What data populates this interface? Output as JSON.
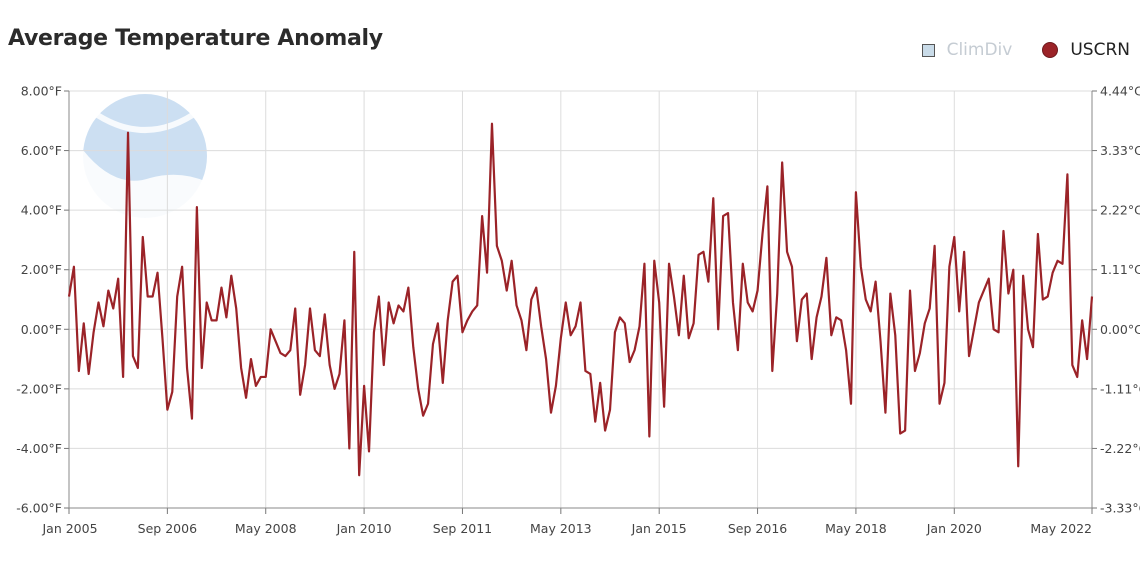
{
  "chart_data": {
    "type": "line",
    "title": "Average Temperature Anomaly",
    "legend": [
      {
        "name": "ClimDiv",
        "color": "#c9dbe8",
        "marker": "square",
        "active": false
      },
      {
        "name": "USCRN",
        "color": "#9b2328",
        "marker": "circle",
        "active": true
      }
    ],
    "legend_position": "top-right",
    "ylim": [
      -6,
      8
    ],
    "yticks": [
      {
        "value": -6,
        "label": "-6.00°F"
      },
      {
        "value": -4,
        "label": "-4.00°F"
      },
      {
        "value": -2,
        "label": "-2.00°F"
      },
      {
        "value": 0,
        "label": "0.00°F"
      },
      {
        "value": 2,
        "label": "2.00°F"
      },
      {
        "value": 4,
        "label": "4.00°F"
      },
      {
        "value": 6,
        "label": "6.00°F"
      },
      {
        "value": 8,
        "label": "8.00°F"
      }
    ],
    "yticks_right": [
      {
        "value": -6,
        "label": "-3.33°C"
      },
      {
        "value": -4,
        "label": "-2.22°C"
      },
      {
        "value": -2,
        "label": "-1.11°C"
      },
      {
        "value": 0,
        "label": "0.00°C"
      },
      {
        "value": 2,
        "label": "1.11°C"
      },
      {
        "value": 4,
        "label": "2.22°C"
      },
      {
        "value": 6,
        "label": "3.33°C"
      },
      {
        "value": 8,
        "label": "4.44°C"
      }
    ],
    "xlim": [
      "2005-01",
      "2022-05"
    ],
    "xticks": [
      {
        "value": "2005-01",
        "label": "Jan 2005"
      },
      {
        "value": "2006-09",
        "label": "Sep 2006"
      },
      {
        "value": "2008-05",
        "label": "May 2008"
      },
      {
        "value": "2010-01",
        "label": "Jan 2010"
      },
      {
        "value": "2011-09",
        "label": "Sep 2011"
      },
      {
        "value": "2013-05",
        "label": "May 2013"
      },
      {
        "value": "2015-01",
        "label": "Jan 2015"
      },
      {
        "value": "2016-09",
        "label": "Sep 2016"
      },
      {
        "value": "2018-05",
        "label": "May 2018"
      },
      {
        "value": "2020-01",
        "label": "Jan 2020"
      },
      {
        "value": "2022-05",
        "label": "May 2022"
      }
    ],
    "grid": true,
    "series": [
      {
        "name": "USCRN",
        "color": "#9b2328",
        "points": [
          [
            "2005-01",
            1.1
          ],
          [
            "2005-02",
            2.1
          ],
          [
            "2005-03",
            -1.4
          ],
          [
            "2005-04",
            0.2
          ],
          [
            "2005-05",
            -1.5
          ],
          [
            "2005-06",
            -0.1
          ],
          [
            "2005-07",
            0.9
          ],
          [
            "2005-08",
            0.1
          ],
          [
            "2005-09",
            1.3
          ],
          [
            "2005-10",
            0.7
          ],
          [
            "2005-11",
            1.7
          ],
          [
            "2005-12",
            -1.6
          ],
          [
            "2006-01",
            6.6
          ],
          [
            "2006-02",
            -0.9
          ],
          [
            "2006-03",
            -1.3
          ],
          [
            "2006-04",
            3.1
          ],
          [
            "2006-05",
            1.1
          ],
          [
            "2006-06",
            1.1
          ],
          [
            "2006-07",
            1.9
          ],
          [
            "2006-08",
            -0.3
          ],
          [
            "2006-09",
            -2.7
          ],
          [
            "2006-10",
            -2.1
          ],
          [
            "2006-11",
            1.1
          ],
          [
            "2006-12",
            2.1
          ],
          [
            "2007-01",
            -1.3
          ],
          [
            "2007-02",
            -3.0
          ],
          [
            "2007-03",
            4.1
          ],
          [
            "2007-04",
            -1.3
          ],
          [
            "2007-05",
            0.9
          ],
          [
            "2007-06",
            0.3
          ],
          [
            "2007-07",
            0.3
          ],
          [
            "2007-08",
            1.4
          ],
          [
            "2007-09",
            0.4
          ],
          [
            "2007-10",
            1.8
          ],
          [
            "2007-11",
            0.7
          ],
          [
            "2007-12",
            -1.3
          ],
          [
            "2008-01",
            -2.3
          ],
          [
            "2008-02",
            -1.0
          ],
          [
            "2008-03",
            -1.9
          ],
          [
            "2008-04",
            -1.6
          ],
          [
            "2008-05",
            -1.6
          ],
          [
            "2008-06",
            0.0
          ],
          [
            "2008-07",
            -0.4
          ],
          [
            "2008-08",
            -0.8
          ],
          [
            "2008-09",
            -0.9
          ],
          [
            "2008-10",
            -0.7
          ],
          [
            "2008-11",
            0.7
          ],
          [
            "2008-12",
            -2.2
          ],
          [
            "2009-01",
            -1.2
          ],
          [
            "2009-02",
            0.7
          ],
          [
            "2009-03",
            -0.7
          ],
          [
            "2009-04",
            -0.9
          ],
          [
            "2009-05",
            0.5
          ],
          [
            "2009-06",
            -1.2
          ],
          [
            "2009-07",
            -2.0
          ],
          [
            "2009-08",
            -1.5
          ],
          [
            "2009-09",
            0.3
          ],
          [
            "2009-10",
            -4.0
          ],
          [
            "2009-11",
            2.6
          ],
          [
            "2009-12",
            -4.9
          ],
          [
            "2010-01",
            -1.9
          ],
          [
            "2010-02",
            -4.1
          ],
          [
            "2010-03",
            -0.1
          ],
          [
            "2010-04",
            1.1
          ],
          [
            "2010-05",
            -1.2
          ],
          [
            "2010-06",
            0.9
          ],
          [
            "2010-07",
            0.2
          ],
          [
            "2010-08",
            0.8
          ],
          [
            "2010-09",
            0.6
          ],
          [
            "2010-10",
            1.4
          ],
          [
            "2010-11",
            -0.6
          ],
          [
            "2010-12",
            -2.0
          ],
          [
            "2011-01",
            -2.9
          ],
          [
            "2011-02",
            -2.5
          ],
          [
            "2011-03",
            -0.5
          ],
          [
            "2011-04",
            0.2
          ],
          [
            "2011-05",
            -1.8
          ],
          [
            "2011-06",
            0.3
          ],
          [
            "2011-07",
            1.6
          ],
          [
            "2011-08",
            1.8
          ],
          [
            "2011-09",
            -0.1
          ],
          [
            "2011-10",
            0.3
          ],
          [
            "2011-11",
            0.6
          ],
          [
            "2011-12",
            0.8
          ],
          [
            "2012-01",
            3.8
          ],
          [
            "2012-02",
            1.9
          ],
          [
            "2012-03",
            6.9
          ],
          [
            "2012-04",
            2.8
          ],
          [
            "2012-05",
            2.3
          ],
          [
            "2012-06",
            1.3
          ],
          [
            "2012-07",
            2.3
          ],
          [
            "2012-08",
            0.8
          ],
          [
            "2012-09",
            0.3
          ],
          [
            "2012-10",
            -0.7
          ],
          [
            "2012-11",
            1.0
          ],
          [
            "2012-12",
            1.4
          ],
          [
            "2013-01",
            0.1
          ],
          [
            "2013-02",
            -1.0
          ],
          [
            "2013-03",
            -2.8
          ],
          [
            "2013-04",
            -1.9
          ],
          [
            "2013-05",
            -0.3
          ],
          [
            "2013-06",
            0.9
          ],
          [
            "2013-07",
            -0.2
          ],
          [
            "2013-08",
            0.1
          ],
          [
            "2013-09",
            0.9
          ],
          [
            "2013-10",
            -1.4
          ],
          [
            "2013-11",
            -1.5
          ],
          [
            "2013-12",
            -3.1
          ],
          [
            "2014-01",
            -1.8
          ],
          [
            "2014-02",
            -3.4
          ],
          [
            "2014-03",
            -2.7
          ],
          [
            "2014-04",
            -0.1
          ],
          [
            "2014-05",
            0.4
          ],
          [
            "2014-06",
            0.2
          ],
          [
            "2014-07",
            -1.1
          ],
          [
            "2014-08",
            -0.7
          ],
          [
            "2014-09",
            0.1
          ],
          [
            "2014-10",
            2.2
          ],
          [
            "2014-11",
            -3.6
          ],
          [
            "2014-12",
            2.3
          ],
          [
            "2015-01",
            0.9
          ],
          [
            "2015-02",
            -2.6
          ],
          [
            "2015-03",
            2.2
          ],
          [
            "2015-04",
            1.1
          ],
          [
            "2015-05",
            -0.2
          ],
          [
            "2015-06",
            1.8
          ],
          [
            "2015-07",
            -0.3
          ],
          [
            "2015-08",
            0.2
          ],
          [
            "2015-09",
            2.5
          ],
          [
            "2015-10",
            2.6
          ],
          [
            "2015-11",
            1.6
          ],
          [
            "2015-12",
            4.4
          ],
          [
            "2016-01",
            0.0
          ],
          [
            "2016-02",
            3.8
          ],
          [
            "2016-03",
            3.9
          ],
          [
            "2016-04",
            0.9
          ],
          [
            "2016-05",
            -0.7
          ],
          [
            "2016-06",
            2.2
          ],
          [
            "2016-07",
            0.9
          ],
          [
            "2016-08",
            0.6
          ],
          [
            "2016-09",
            1.3
          ],
          [
            "2016-10",
            3.2
          ],
          [
            "2016-11",
            4.8
          ],
          [
            "2016-12",
            -1.4
          ],
          [
            "2017-01",
            1.2
          ],
          [
            "2017-02",
            5.6
          ],
          [
            "2017-03",
            2.6
          ],
          [
            "2017-04",
            2.1
          ],
          [
            "2017-05",
            -0.4
          ],
          [
            "2017-06",
            1.0
          ],
          [
            "2017-07",
            1.2
          ],
          [
            "2017-08",
            -1.0
          ],
          [
            "2017-09",
            0.4
          ],
          [
            "2017-10",
            1.1
          ],
          [
            "2017-11",
            2.4
          ],
          [
            "2017-12",
            -0.2
          ],
          [
            "2018-01",
            0.4
          ],
          [
            "2018-02",
            0.3
          ],
          [
            "2018-03",
            -0.7
          ],
          [
            "2018-04",
            -2.5
          ],
          [
            "2018-05",
            4.6
          ],
          [
            "2018-06",
            2.1
          ],
          [
            "2018-07",
            1.0
          ],
          [
            "2018-08",
            0.6
          ],
          [
            "2018-09",
            1.6
          ],
          [
            "2018-10",
            -0.4
          ],
          [
            "2018-11",
            -2.8
          ],
          [
            "2018-12",
            1.2
          ],
          [
            "2019-01",
            -0.2
          ],
          [
            "2019-02",
            -3.5
          ],
          [
            "2019-03",
            -3.4
          ],
          [
            "2019-04",
            1.3
          ],
          [
            "2019-05",
            -1.4
          ],
          [
            "2019-06",
            -0.8
          ],
          [
            "2019-07",
            0.2
          ],
          [
            "2019-08",
            0.7
          ],
          [
            "2019-09",
            2.8
          ],
          [
            "2019-10",
            -2.5
          ],
          [
            "2019-11",
            -1.8
          ],
          [
            "2019-12",
            2.1
          ],
          [
            "2020-01",
            3.1
          ],
          [
            "2020-02",
            0.6
          ],
          [
            "2020-03",
            2.6
          ],
          [
            "2020-04",
            -0.9
          ],
          [
            "2020-05",
            0.0
          ],
          [
            "2020-06",
            0.9
          ],
          [
            "2020-07",
            1.3
          ],
          [
            "2020-08",
            1.7
          ],
          [
            "2020-09",
            0.0
          ],
          [
            "2020-10",
            -0.1
          ],
          [
            "2020-11",
            3.3
          ],
          [
            "2020-12",
            1.2
          ],
          [
            "2021-01",
            2.0
          ],
          [
            "2021-02",
            -4.6
          ],
          [
            "2021-03",
            1.8
          ],
          [
            "2021-04",
            0.0
          ],
          [
            "2021-05",
            -0.6
          ],
          [
            "2021-06",
            3.2
          ],
          [
            "2021-07",
            1.0
          ],
          [
            "2021-08",
            1.1
          ],
          [
            "2021-09",
            1.9
          ],
          [
            "2021-10",
            2.3
          ],
          [
            "2021-11",
            2.2
          ],
          [
            "2021-12",
            5.2
          ],
          [
            "2022-01",
            -1.2
          ],
          [
            "2022-02",
            -1.6
          ],
          [
            "2022-03",
            0.3
          ],
          [
            "2022-04",
            -1.0
          ],
          [
            "2022-05",
            1.1
          ]
        ]
      }
    ]
  }
}
